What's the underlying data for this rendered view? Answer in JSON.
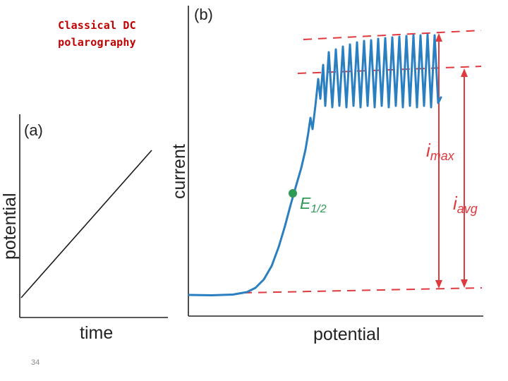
{
  "slide": {
    "title_line1": "Classical DC",
    "title_line2": "polarography",
    "page_number": "34"
  },
  "colors": {
    "title": "#c00000",
    "curve": "#2a7fc1",
    "annotation": "#e0393e",
    "half_wave_point": "#2e9a55",
    "axis": "#222222"
  },
  "panel_a": {
    "label": "(a)",
    "xlabel": "time",
    "ylabel": "potential"
  },
  "panel_b": {
    "label": "(b)",
    "xlabel": "potential",
    "ylabel": "current",
    "i_max": {
      "symbol": "i",
      "sub": "max"
    },
    "i_avg": {
      "symbol": "i",
      "sub": "avg"
    },
    "e_half": {
      "symbol": "E",
      "sub": "1/2"
    }
  }
}
